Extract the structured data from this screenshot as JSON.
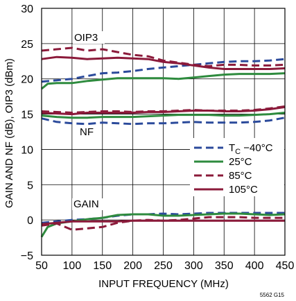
{
  "chart_data": {
    "type": "line",
    "xlabel": "INPUT FREQUENCY (MHz)",
    "ylabel": "GAIN AND NF (dB), OIP3 (dBm)",
    "xlim": [
      50,
      450
    ],
    "ylim": [
      -5,
      30
    ],
    "x_ticks": [
      "50",
      "100",
      "150",
      "200",
      "250",
      "300",
      "350",
      "400",
      "450"
    ],
    "y_ticks": [
      "−5",
      "0",
      "5",
      "10",
      "15",
      "20",
      "25",
      "30"
    ],
    "grid": true,
    "legend_placement": "right-middle",
    "legend": [
      {
        "label_main": "T",
        "label_sub": "C",
        "label_rest": " −40°C",
        "color": "#2b4a9b",
        "dash": "dashed"
      },
      {
        "label_main": "25°C",
        "label_sub": "",
        "label_rest": "",
        "color": "#2e8b3e",
        "dash": "solid"
      },
      {
        "label_main": "85°C",
        "label_sub": "",
        "label_rest": "",
        "color": "#8b1a3a",
        "dash": "dashed"
      },
      {
        "label_main": "105°C",
        "label_sub": "",
        "label_rest": "",
        "color": "#8b1a3a",
        "dash": "solid"
      }
    ],
    "annotations": [
      "OIP3",
      "NF",
      "GAIN"
    ],
    "footnote": "5562 G15",
    "series": [
      {
        "legend_index": 0,
        "group": "OIP3",
        "color": "#2b4a9b",
        "dash": "dashed",
        "x": [
          50,
          75,
          100,
          125,
          150,
          175,
          200,
          225,
          250,
          275,
          300,
          325,
          350,
          375,
          400,
          425,
          450
        ],
        "y": [
          19.6,
          19.8,
          20.0,
          20.4,
          20.8,
          20.9,
          21.1,
          21.4,
          21.6,
          21.8,
          22.0,
          22.2,
          22.4,
          22.5,
          22.5,
          22.6,
          22.8
        ]
      },
      {
        "legend_index": 1,
        "group": "OIP3",
        "color": "#2e8b3e",
        "dash": "solid",
        "x": [
          50,
          60,
          75,
          100,
          125,
          150,
          175,
          200,
          225,
          250,
          275,
          300,
          325,
          350,
          375,
          400,
          425,
          450
        ],
        "y": [
          18.6,
          19.3,
          19.4,
          19.4,
          19.7,
          19.9,
          20.1,
          20.1,
          20.1,
          20.1,
          20.0,
          20.2,
          20.4,
          20.6,
          20.7,
          20.7,
          20.7,
          20.8
        ]
      },
      {
        "legend_index": 2,
        "group": "OIP3",
        "color": "#8b1a3a",
        "dash": "dashed",
        "x": [
          50,
          75,
          100,
          125,
          150,
          175,
          200,
          225,
          250,
          275,
          300,
          325,
          350,
          375,
          400,
          425,
          450
        ],
        "y": [
          24.0,
          24.2,
          24.4,
          24.0,
          24.2,
          23.8,
          23.4,
          23.2,
          22.6,
          22.3,
          22.0,
          21.8,
          22.0,
          22.0,
          21.9,
          21.9,
          22.0
        ]
      },
      {
        "legend_index": 3,
        "group": "OIP3",
        "color": "#8b1a3a",
        "dash": "solid",
        "x": [
          50,
          75,
          100,
          125,
          150,
          175,
          200,
          225,
          250,
          275,
          300,
          325,
          350,
          375,
          400,
          425,
          450
        ],
        "y": [
          22.8,
          23.1,
          23.0,
          22.8,
          22.9,
          23.0,
          22.9,
          22.8,
          22.4,
          22.2,
          21.9,
          21.6,
          21.4,
          21.4,
          21.4,
          21.4,
          21.5
        ]
      },
      {
        "legend_index": 0,
        "group": "NF",
        "color": "#2b4a9b",
        "dash": "dashed",
        "x": [
          50,
          75,
          100,
          125,
          150,
          175,
          200,
          225,
          250,
          275,
          300,
          325,
          350,
          375,
          400,
          425,
          450
        ],
        "y": [
          14.4,
          13.9,
          13.7,
          13.6,
          13.8,
          13.7,
          13.6,
          13.7,
          13.7,
          13.8,
          13.9,
          13.8,
          13.8,
          13.8,
          13.9,
          14.1,
          14.5
        ]
      },
      {
        "legend_index": 1,
        "group": "NF",
        "color": "#2e8b3e",
        "dash": "solid",
        "x": [
          50,
          75,
          100,
          125,
          150,
          175,
          200,
          225,
          250,
          275,
          300,
          325,
          350,
          375,
          400,
          425,
          450
        ],
        "y": [
          14.8,
          14.6,
          14.5,
          14.5,
          14.6,
          14.6,
          14.6,
          14.7,
          14.8,
          14.9,
          14.9,
          14.9,
          14.8,
          14.8,
          14.9,
          15.0,
          15.2
        ]
      },
      {
        "legend_index": 2,
        "group": "NF",
        "color": "#8b1a3a",
        "dash": "dashed",
        "x": [
          50,
          75,
          100,
          125,
          150,
          175,
          200,
          225,
          250,
          275,
          300,
          325,
          350,
          375,
          400,
          425,
          450
        ],
        "y": [
          15.4,
          15.3,
          15.2,
          15.3,
          15.4,
          15.4,
          15.3,
          15.4,
          15.4,
          15.5,
          15.6,
          15.5,
          15.5,
          15.5,
          15.6,
          15.8,
          16.1
        ]
      },
      {
        "legend_index": 3,
        "group": "NF",
        "color": "#8b1a3a",
        "dash": "solid",
        "x": [
          50,
          75,
          100,
          125,
          150,
          175,
          200,
          225,
          250,
          275,
          300,
          325,
          350,
          375,
          400,
          425,
          450
        ],
        "y": [
          15.2,
          15.1,
          15.0,
          15.2,
          15.2,
          15.2,
          15.2,
          15.3,
          15.3,
          15.4,
          15.5,
          15.5,
          15.4,
          15.4,
          15.5,
          15.7,
          16.0
        ]
      },
      {
        "legend_index": 0,
        "group": "GAIN",
        "color": "#2b4a9b",
        "dash": "dashed",
        "x": [
          50,
          75,
          100,
          125,
          150,
          175,
          200,
          225,
          250,
          275,
          300,
          325,
          350,
          375,
          400,
          425,
          450
        ],
        "y": [
          -0.4,
          -0.2,
          0.0,
          0.1,
          0.3,
          0.6,
          0.8,
          0.8,
          0.9,
          0.8,
          0.9,
          1.0,
          1.0,
          1.0,
          1.0,
          1.0,
          1.0
        ]
      },
      {
        "legend_index": 1,
        "group": "GAIN",
        "color": "#2e8b3e",
        "dash": "solid",
        "x": [
          50,
          60,
          75,
          100,
          125,
          150,
          175,
          200,
          225,
          250,
          275,
          300,
          325,
          350,
          375,
          400,
          425,
          450
        ],
        "y": [
          -2.4,
          -1.0,
          -0.5,
          -0.2,
          0.1,
          0.3,
          0.7,
          0.8,
          0.8,
          0.6,
          0.6,
          0.7,
          0.8,
          0.9,
          0.9,
          0.8,
          0.7,
          0.8
        ]
      },
      {
        "legend_index": 2,
        "group": "GAIN",
        "color": "#8b1a3a",
        "dash": "dashed",
        "x": [
          50,
          75,
          100,
          125,
          150,
          175,
          200,
          225,
          250,
          275,
          300,
          325,
          350,
          375,
          400,
          425,
          450
        ],
        "y": [
          -0.8,
          -0.5,
          -1.4,
          -1.2,
          -1.0,
          -0.4,
          -0.1,
          0.0,
          -0.1,
          0.0,
          0.2,
          0.4,
          0.4,
          0.4,
          0.3,
          0.3,
          0.3
        ]
      },
      {
        "legend_index": 3,
        "group": "GAIN",
        "color": "#8b1a3a",
        "dash": "solid",
        "x": [
          50,
          75,
          100,
          125,
          150,
          175,
          200,
          225,
          250,
          275,
          300,
          325,
          350,
          375,
          400,
          425,
          450
        ],
        "y": [
          -0.6,
          -0.4,
          -0.2,
          -0.2,
          -0.2,
          -0.2,
          -0.1,
          -0.1,
          -0.1,
          -0.1,
          -0.1,
          -0.1,
          -0.1,
          -0.1,
          -0.1,
          -0.1,
          -0.1
        ]
      }
    ]
  }
}
